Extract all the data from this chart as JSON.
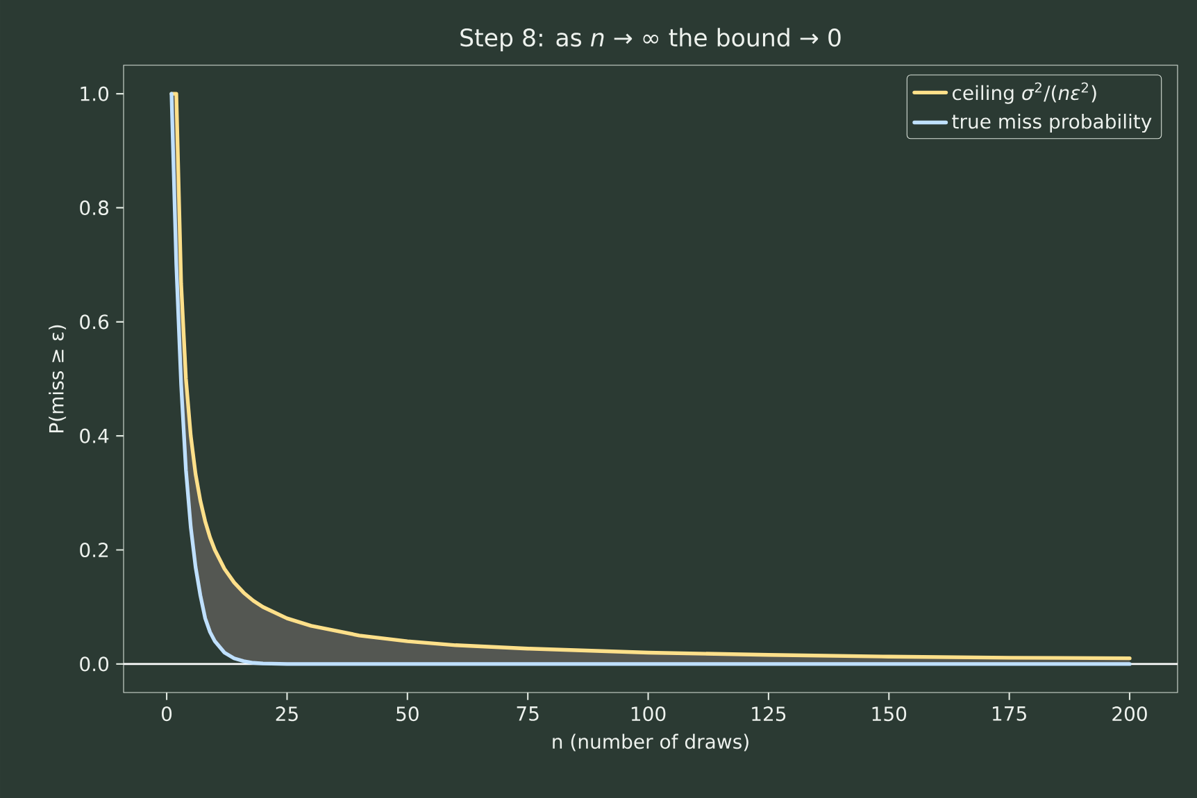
{
  "chart_data": {
    "type": "line",
    "title": "Step 8: as *n* → ∞ the bound → 0",
    "xlabel": "n (number of draws)",
    "ylabel": "P(miss ≥ ε)",
    "series": [
      {
        "name": "ceiling *σ*$^{2}$/(*nε*$^{2}$)",
        "color": "#ffe08a",
        "x": [
          1,
          2,
          3,
          4,
          5,
          6,
          7,
          8,
          9,
          10,
          12,
          14,
          16,
          18,
          20,
          25,
          30,
          40,
          50,
          60,
          75,
          100,
          125,
          150,
          175,
          200
        ],
        "values": [
          1,
          1,
          0.667,
          0.5,
          0.4,
          0.333,
          0.286,
          0.25,
          0.222,
          0.2,
          0.167,
          0.143,
          0.125,
          0.111,
          0.1,
          0.08,
          0.067,
          0.05,
          0.04,
          0.033,
          0.027,
          0.02,
          0.016,
          0.013,
          0.011,
          0.01
        ],
        "lower": [
          1,
          0.7,
          0.49,
          0.34,
          0.24,
          0.17,
          0.12,
          0.08,
          0.056,
          0.04,
          0.02,
          0.01,
          0.005,
          0.002,
          0.001,
          0,
          0,
          0,
          0,
          0,
          0,
          0,
          0,
          0,
          0,
          0
        ],
        "upper": [
          1,
          1,
          0.667,
          0.5,
          0.4,
          0.333,
          0.286,
          0.25,
          0.222,
          0.2,
          0.167,
          0.143,
          0.125,
          0.111,
          0.1,
          0.08,
          0.067,
          0.05,
          0.04,
          0.033,
          0.027,
          0.02,
          0.016,
          0.013,
          0.011,
          0.01
        ]
      },
      {
        "name": "true miss probability",
        "color": "#bfe0ff",
        "x": [
          1,
          2,
          3,
          4,
          5,
          6,
          7,
          8,
          9,
          10,
          12,
          14,
          16,
          18,
          20,
          25,
          30,
          40,
          50,
          60,
          75,
          100,
          125,
          150,
          175,
          200
        ],
        "values": [
          1,
          0.7,
          0.49,
          0.34,
          0.24,
          0.17,
          0.12,
          0.08,
          0.056,
          0.04,
          0.02,
          0.01,
          0.005,
          0.002,
          0.001,
          0,
          0,
          0,
          0,
          0,
          0,
          0,
          0,
          0,
          0,
          0
        ]
      }
    ],
    "xlim": [
      -8.95,
      209.95
    ],
    "ylim": [
      -0.05,
      1.05
    ],
    "xticks": [
      0,
      25,
      50,
      75,
      100,
      125,
      150,
      175,
      200
    ],
    "yticks": [
      {
        "value": 0,
        "label": "0.0"
      },
      {
        "value": 0.2,
        "label": "0.2"
      },
      {
        "value": 0.4,
        "label": "0.4"
      },
      {
        "value": 0.6,
        "label": "0.6"
      },
      {
        "value": 0.8,
        "label": "0.8"
      },
      {
        "value": 1.0,
        "label": "1.0"
      }
    ],
    "ref_lines": [
      {
        "axis": "y",
        "value": 0,
        "color": "#ffffff"
      }
    ],
    "legend": "top right",
    "grid": false,
    "marker": "none",
    "line_style": "solid"
  }
}
